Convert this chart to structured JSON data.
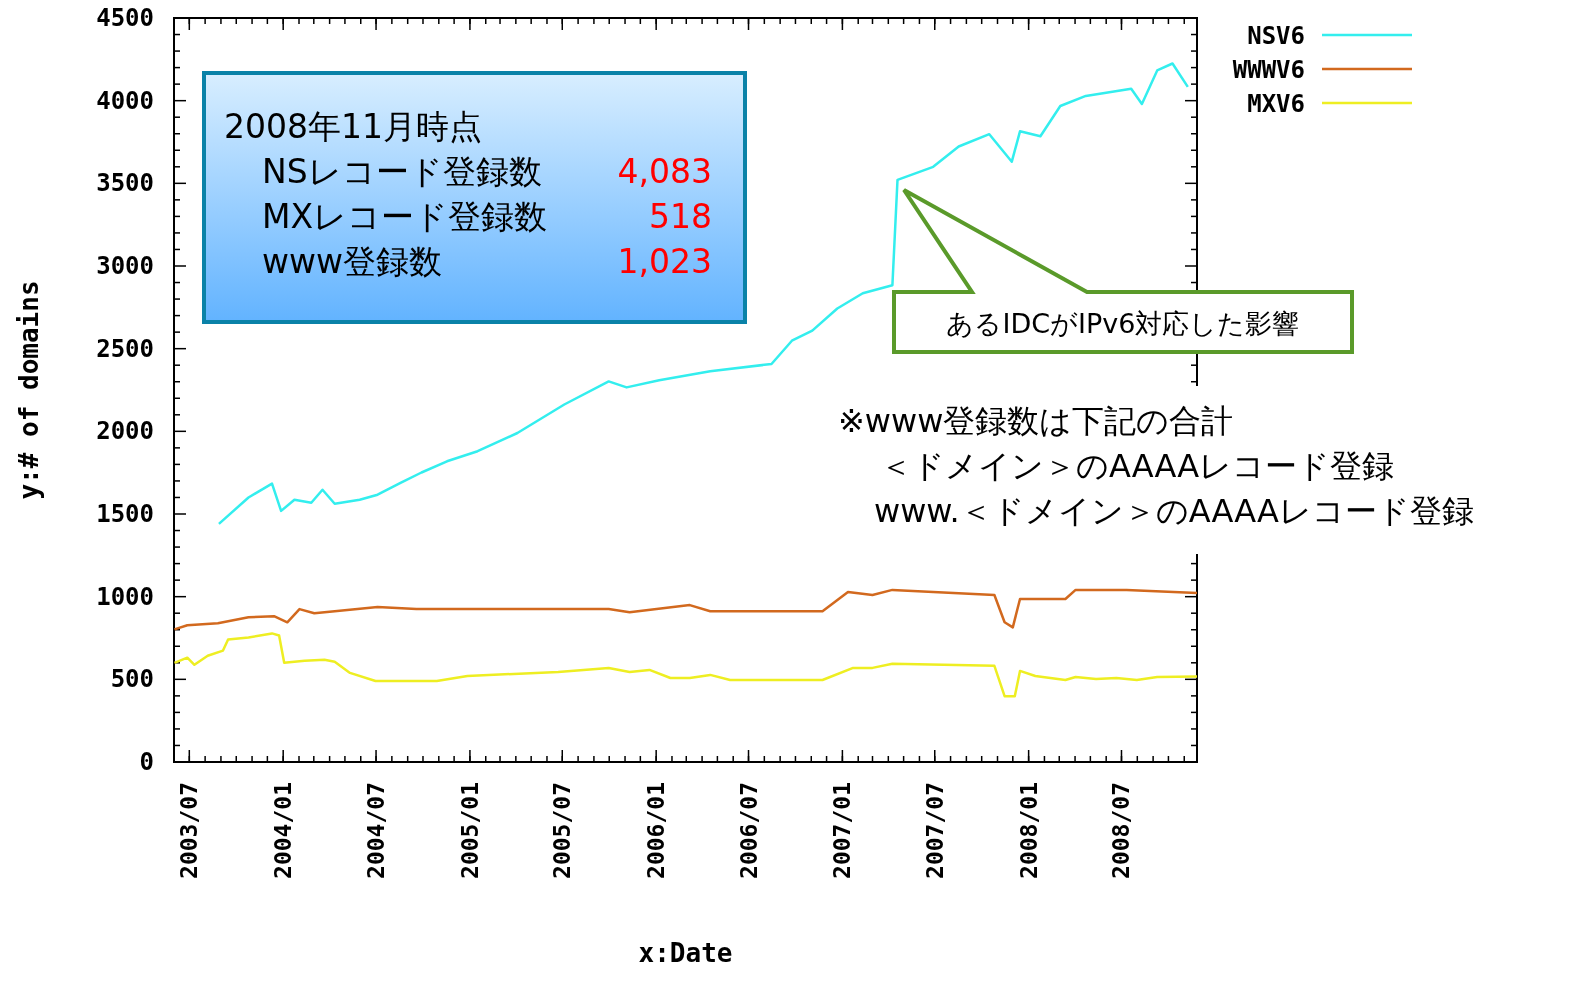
{
  "chart_data": {
    "type": "line",
    "xlabel": "x:Date",
    "ylabel": "y:# of domains",
    "xlim": [
      "2003-06-01",
      "2008-11-26"
    ],
    "ylim": [
      0,
      4500
    ],
    "xticks": [
      {
        "value": "2003-07",
        "label": "2003/07"
      },
      {
        "value": "2004-01",
        "label": "2004/01"
      },
      {
        "value": "2004-07",
        "label": "2004/07"
      },
      {
        "value": "2005-01",
        "label": "2005/01"
      },
      {
        "value": "2005-07",
        "label": "2005/07"
      },
      {
        "value": "2006-01",
        "label": "2006/01"
      },
      {
        "value": "2006-07",
        "label": "2006/07"
      },
      {
        "value": "2007-01",
        "label": "2007/01"
      },
      {
        "value": "2007-07",
        "label": "2007/07"
      },
      {
        "value": "2008-01",
        "label": "2008/01"
      },
      {
        "value": "2008-07",
        "label": "2008/07"
      }
    ],
    "yticks": [
      0,
      500,
      1000,
      1500,
      2000,
      2500,
      3000,
      3500,
      4000,
      4500
    ],
    "legend": "right",
    "series": [
      {
        "name": "NSV6",
        "color": "#33eeee",
        "x": [
          "2003-08-28",
          "2003-10-25",
          "2003-12-10",
          "2003-12-28",
          "2004-01-23",
          "2004-02-25",
          "2004-03-18",
          "2004-04-11",
          "2004-05-30",
          "2004-07-04",
          "2004-08-19",
          "2004-09-28",
          "2004-11-17",
          "2005-01-16",
          "2005-04-04",
          "2005-07-05",
          "2005-09-30",
          "2005-11-04",
          "2006-01-07",
          "2006-04-17",
          "2006-08-15",
          "2006-09-24",
          "2006-11-03",
          "2006-12-22",
          "2007-02-10",
          "2007-04-09",
          "2007-04-19",
          "2007-06-28",
          "2007-08-17",
          "2007-10-16",
          "2007-11-29",
          "2007-12-15",
          "2008-01-24",
          "2008-03-03",
          "2008-04-22",
          "2008-07-20",
          "2008-08-10",
          "2008-09-09",
          "2008-10-09",
          "2008-11-08"
        ],
        "values": [
          1440,
          1600,
          1684,
          1519,
          1586,
          1568,
          1647,
          1562,
          1586,
          1617,
          1690,
          1751,
          1819,
          1880,
          1990,
          2162,
          2302,
          2266,
          2309,
          2364,
          2407,
          2548,
          2609,
          2743,
          2835,
          2884,
          3521,
          3600,
          3723,
          3797,
          3631,
          3815,
          3785,
          3968,
          4029,
          4072,
          3980,
          4183,
          4225,
          4083
        ]
      },
      {
        "name": "WWWV6",
        "color": "#d2691e",
        "x": [
          "2003-06-02",
          "2003-06-27",
          "2003-08-26",
          "2003-10-25",
          "2003-12-14",
          "2004-01-09",
          "2004-02-02",
          "2004-03-02",
          "2004-04-11",
          "2004-07-04",
          "2004-09-18",
          "2005-09-30",
          "2005-11-10",
          "2006-03-08",
          "2006-04-17",
          "2006-11-23",
          "2007-01-12",
          "2007-03-01",
          "2007-04-09",
          "2007-10-26",
          "2007-11-15",
          "2007-12-01",
          "2007-12-15",
          "2008-03-13",
          "2008-04-02",
          "2008-07-11",
          "2008-11-26"
        ],
        "values": [
          802,
          827,
          839,
          876,
          882,
          845,
          925,
          900,
          912,
          937,
          925,
          925,
          906,
          949,
          912,
          912,
          1029,
          1010,
          1041,
          1010,
          845,
          814,
          986,
          986,
          1041,
          1041,
          1023
        ]
      },
      {
        "name": "MXV6",
        "color": "#eeee22",
        "x": [
          "2003-06-02",
          "2003-06-27",
          "2003-07-11",
          "2003-08-06",
          "2003-09-05",
          "2003-09-15",
          "2003-10-25",
          "2003-12-10",
          "2003-12-24",
          "2004-01-03",
          "2004-02-12",
          "2004-03-22",
          "2004-04-11",
          "2004-05-11",
          "2004-06-30",
          "2004-10-28",
          "2004-12-27",
          "2005-06-23",
          "2005-09-30",
          "2005-11-10",
          "2005-12-19",
          "2006-01-29",
          "2006-03-08",
          "2006-04-17",
          "2006-05-26",
          "2006-11-23",
          "2007-01-22",
          "2007-03-01",
          "2007-04-09",
          "2007-10-26",
          "2007-11-15",
          "2007-12-05",
          "2007-12-15",
          "2008-01-14",
          "2008-03-13",
          "2008-04-02",
          "2008-05-12",
          "2008-06-21",
          "2008-07-31",
          "2008-09-09",
          "2008-11-26"
        ],
        "values": [
          600,
          631,
          588,
          643,
          674,
          741,
          753,
          778,
          765,
          600,
          612,
          618,
          606,
          539,
          490,
          490,
          520,
          545,
          569,
          545,
          557,
          508,
          508,
          527,
          496,
          496,
          569,
          569,
          594,
          582,
          398,
          398,
          551,
          520,
          496,
          514,
          502,
          508,
          496,
          514,
          518
        ]
      }
    ],
    "annotations": [
      "2008年11月時点",
      "NSレコード登録数",
      "4,083",
      "MXレコード登録数",
      "518",
      "www登録数",
      "1,023",
      "あるIDCがIPv6対応した影響",
      "※www登録数は下記の合計",
      "＜ドメイン＞のAAAAレコード登録",
      "www.＜ドメイン＞のAAAAレコード登録"
    ]
  }
}
